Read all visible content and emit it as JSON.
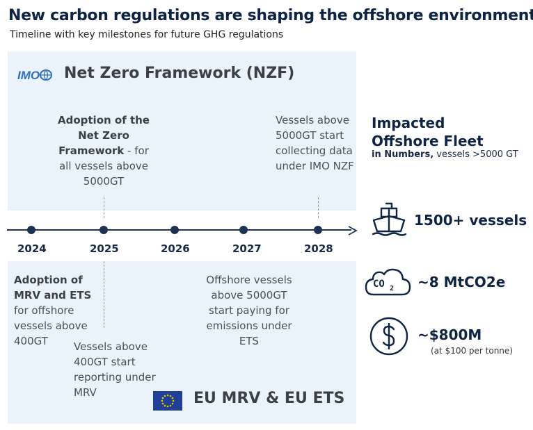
{
  "header": {
    "title": "New carbon regulations are shaping the offshore environment",
    "subtitle": "Timeline with key milestones for future GHG regulations"
  },
  "nzf": {
    "logo_text": "IMO",
    "title": "Net Zero Framework (NZF)",
    "milestone_2025": {
      "bold": "Adoption of the Net Zero Framework",
      "rest": " - for all vessels above 5000GT"
    },
    "milestone_2028": "Vessels above 5000GT start collecting data under IMO NZF"
  },
  "timeline": {
    "years": [
      "2024",
      "2025",
      "2026",
      "2027",
      "2028"
    ]
  },
  "eu": {
    "title": "EU MRV & EU ETS",
    "milestone_2024": {
      "bold": "Adoption of MRV and ETS",
      "rest": "for offshore vessels above 400GT"
    },
    "milestone_2025": "Vessels above 400GT start reporting under MRV",
    "milestone_2027": "Offshore vessels above 5000GT start paying for emissions under ETS"
  },
  "fleet": {
    "title_line1": "Impacted",
    "title_line2": "Offshore Fleet",
    "subtitle_bold": "in Numbers,",
    "subtitle_rest": " vessels >5000 GT",
    "stats": [
      {
        "icon": "ship-icon",
        "value": "1500+ vessels",
        "note": ""
      },
      {
        "icon": "co2-cloud-icon",
        "value": "~8 MtCO2e",
        "note": ""
      },
      {
        "icon": "dollar-icon",
        "value": "~$800M",
        "note": "(at $100 per tonne)"
      }
    ]
  },
  "colors": {
    "panel": "#eaf3fc",
    "navy": "#1e3253",
    "eu_blue": "#1f3f99",
    "eu_star": "#f2c200",
    "imo_blue": "#2f6fb8"
  }
}
